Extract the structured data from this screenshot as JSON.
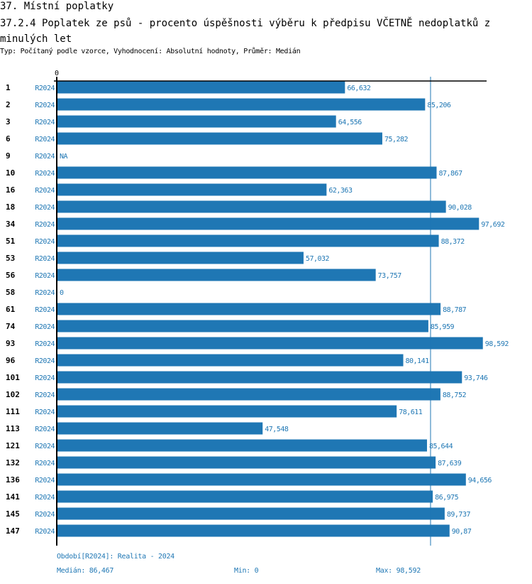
{
  "header": {
    "section": "37. Místní poplatky",
    "title": "37.2.4 Poplatek ze psů - procento úspěšnosti výběru k předpisu VČETNĚ nedoplatků z minulých let",
    "subtitle": "Typ: Počítaný podle vzorce, Vyhodnocení: Absolutní hodnoty, Průměr: Medián"
  },
  "colors": {
    "bar": "#1f77b4",
    "text_blue": "#1f77b4",
    "axis": "#000000"
  },
  "chart_data": {
    "type": "bar",
    "orientation": "horizontal",
    "title": "37.2.4 Poplatek ze psů - procento úspěšnosti výběru k předpisu VČETNĚ nedoplatků z minulých let",
    "x_tick_labels": [
      "0"
    ],
    "xlim": [
      0,
      100
    ],
    "period_label": "R2024",
    "categories": [
      "1",
      "2",
      "3",
      "6",
      "9",
      "10",
      "16",
      "18",
      "34",
      "51",
      "53",
      "56",
      "58",
      "61",
      "74",
      "93",
      "96",
      "101",
      "102",
      "111",
      "113",
      "121",
      "132",
      "136",
      "141",
      "145",
      "147"
    ],
    "values": [
      66.632,
      85.206,
      64.556,
      75.282,
      null,
      87.867,
      62.363,
      90.028,
      97.692,
      88.372,
      57.032,
      73.757,
      0,
      88.787,
      85.959,
      98.592,
      80.141,
      93.746,
      88.752,
      78.611,
      47.548,
      85.644,
      87.639,
      94.656,
      86.975,
      89.737,
      90.87
    ],
    "value_labels": [
      "66,632",
      "85,206",
      "64,556",
      "75,282",
      "NA",
      "87,867",
      "62,363",
      "90,028",
      "97,692",
      "88,372",
      "57,032",
      "73,757",
      "0",
      "88,787",
      "85,959",
      "98,592",
      "80,141",
      "93,746",
      "88,752",
      "78,611",
      "47,548",
      "85,644",
      "87,639",
      "94,656",
      "86,975",
      "89,737",
      "90,87"
    ],
    "median": 86.467,
    "min": 0,
    "max": 98.592,
    "grid": false,
    "legend": "none"
  },
  "footer": {
    "period": "Období[R2024]: Realita - 2024",
    "median": "Medián: 86,467",
    "min": "Min: 0",
    "max": "Max: 98,592"
  }
}
